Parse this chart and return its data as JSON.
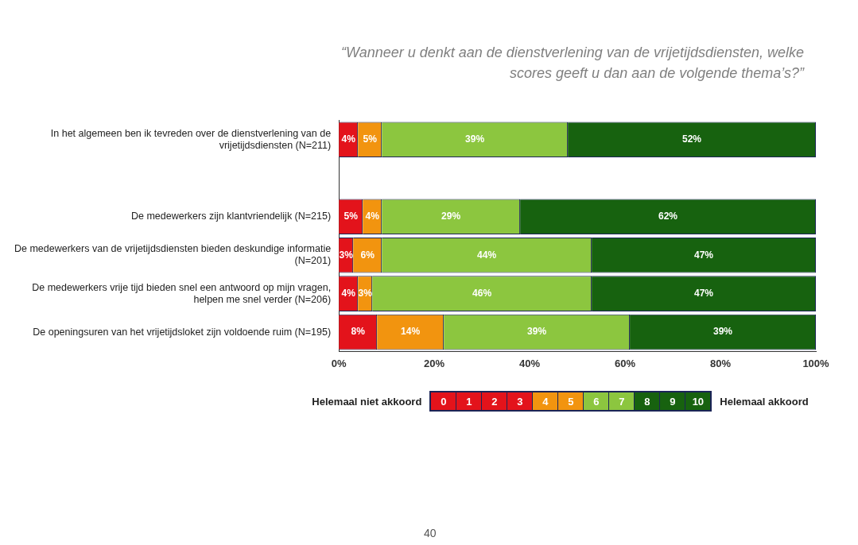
{
  "chart_data": {
    "type": "bar",
    "orientation": "horizontal",
    "stacked": true,
    "title": "“Wanneer u denkt aan de dienstverlening van de vrijetijdsdiensten, welke scores geeft u dan aan de volgende thema’s?”",
    "categories": [
      "In het algemeen ben ik tevreden over de dienstverlening van de vrijetijdsdiensten (N=211)",
      null,
      "De medewerkers zijn klantvriendelijk (N=215)",
      "De medewerkers van de vrijetijdsdiensten bieden deskundige informatie (N=201)",
      "De medewerkers vrije tijd bieden snel een antwoord op mijn vragen, helpen me snel verder (N=206)",
      "De openingsuren van het vrijetijdsloket zijn voldoende ruim (N=195)"
    ],
    "series": [
      {
        "color": "#e3131b",
        "values": [
          4,
          null,
          5,
          3,
          4,
          8
        ],
        "value_labels": [
          "4%",
          null,
          "5%",
          "3%",
          "4%",
          "8%"
        ]
      },
      {
        "color": "#f2940f",
        "values": [
          5,
          null,
          4,
          6,
          3,
          14
        ],
        "value_labels": [
          "5%",
          null,
          "4%",
          "6%",
          "3%",
          "14%"
        ]
      },
      {
        "color": "#8cc63f",
        "values": [
          39,
          null,
          29,
          44,
          46,
          39
        ],
        "value_labels": [
          "39%",
          null,
          "29%",
          "44%",
          "46%",
          "39%"
        ]
      },
      {
        "color": "#17620f",
        "values": [
          52,
          null,
          62,
          47,
          47,
          39
        ],
        "value_labels": [
          "52%",
          null,
          "62%",
          "47%",
          "47%",
          "39%"
        ]
      }
    ],
    "xlim": [
      0,
      100
    ],
    "xticks": [
      {
        "value": 0,
        "label": "0%"
      },
      {
        "value": 20,
        "label": "20%"
      },
      {
        "value": 40,
        "label": "40%"
      },
      {
        "value": 60,
        "label": "60%"
      },
      {
        "value": 80,
        "label": "80%"
      },
      {
        "value": 100,
        "label": "100%"
      }
    ],
    "grid": false,
    "annotations": [
      "Helemaal niet akkoord",
      "0",
      "1",
      "2",
      "3",
      "4",
      "5",
      "6",
      "7",
      "8",
      "9",
      "10",
      "Helemaal akkoord",
      "40"
    ]
  }
}
